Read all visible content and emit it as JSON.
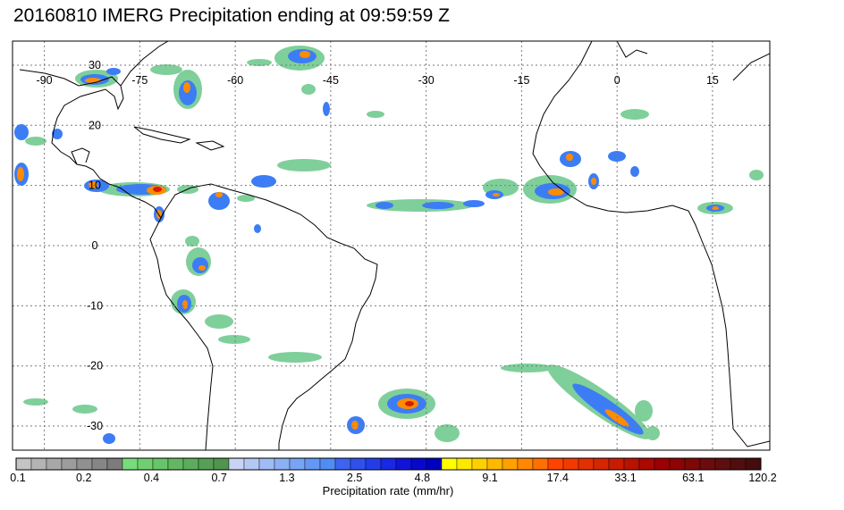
{
  "title": "20160810 IMERG Precipitation ending at 09:59:59 Z",
  "map": {
    "lon_labels": [
      "-90",
      "-75",
      "-60",
      "-45",
      "-30",
      "-15",
      "0",
      "15"
    ],
    "lat_labels": [
      "30",
      "20",
      "10",
      "0",
      "-10",
      "-20",
      "-30"
    ],
    "lon_range": [
      -95,
      24
    ],
    "lat_range": [
      34,
      -34
    ],
    "gridlines": "dotted"
  },
  "legend": {
    "label": "Precipitation rate (mm/hr)",
    "ticks": [
      "0.1",
      "0.2",
      "0.4",
      "0.7",
      "1.3",
      "2.5",
      "4.8",
      "9.1",
      "17.4",
      "33.1",
      "63.1",
      "120.2"
    ],
    "colors": [
      "#c4c4c4",
      "#b4b4b4",
      "#a8a8a8",
      "#9c9c9c",
      "#909090",
      "#868686",
      "#7c7c7c",
      "#78dc78",
      "#70d070",
      "#68c468",
      "#62b862",
      "#5cac5c",
      "#56a056",
      "#509450",
      "#c8d4f4",
      "#b4c8f4",
      "#a0bcf4",
      "#8cb0f4",
      "#78a4f4",
      "#6498f4",
      "#508cf4",
      "#3c64f0",
      "#3050ec",
      "#243ce8",
      "#1828e4",
      "#1014d8",
      "#0808cc",
      "#0000c0",
      "#ffff00",
      "#ffe800",
      "#ffd000",
      "#ffb800",
      "#ffa000",
      "#ff8800",
      "#ff7000",
      "#ff4400",
      "#f23a00",
      "#e43000",
      "#d62600",
      "#c81c00",
      "#ba1200",
      "#ac0800",
      "#9c0000",
      "#8c0404",
      "#7c0808",
      "#6c0c0c",
      "#5e0e0e",
      "#500e0e",
      "#440c0c"
    ]
  },
  "colors": {
    "coastline": "#000000",
    "frame": "#000000",
    "grid": "#7a7a7a",
    "rain_light": "#7fcf9a",
    "rain_moderate": "#3c7df5",
    "rain_heavy": "#1515c8",
    "rain_intense": "#ff8c00",
    "rain_extreme": "#d81c00"
  }
}
